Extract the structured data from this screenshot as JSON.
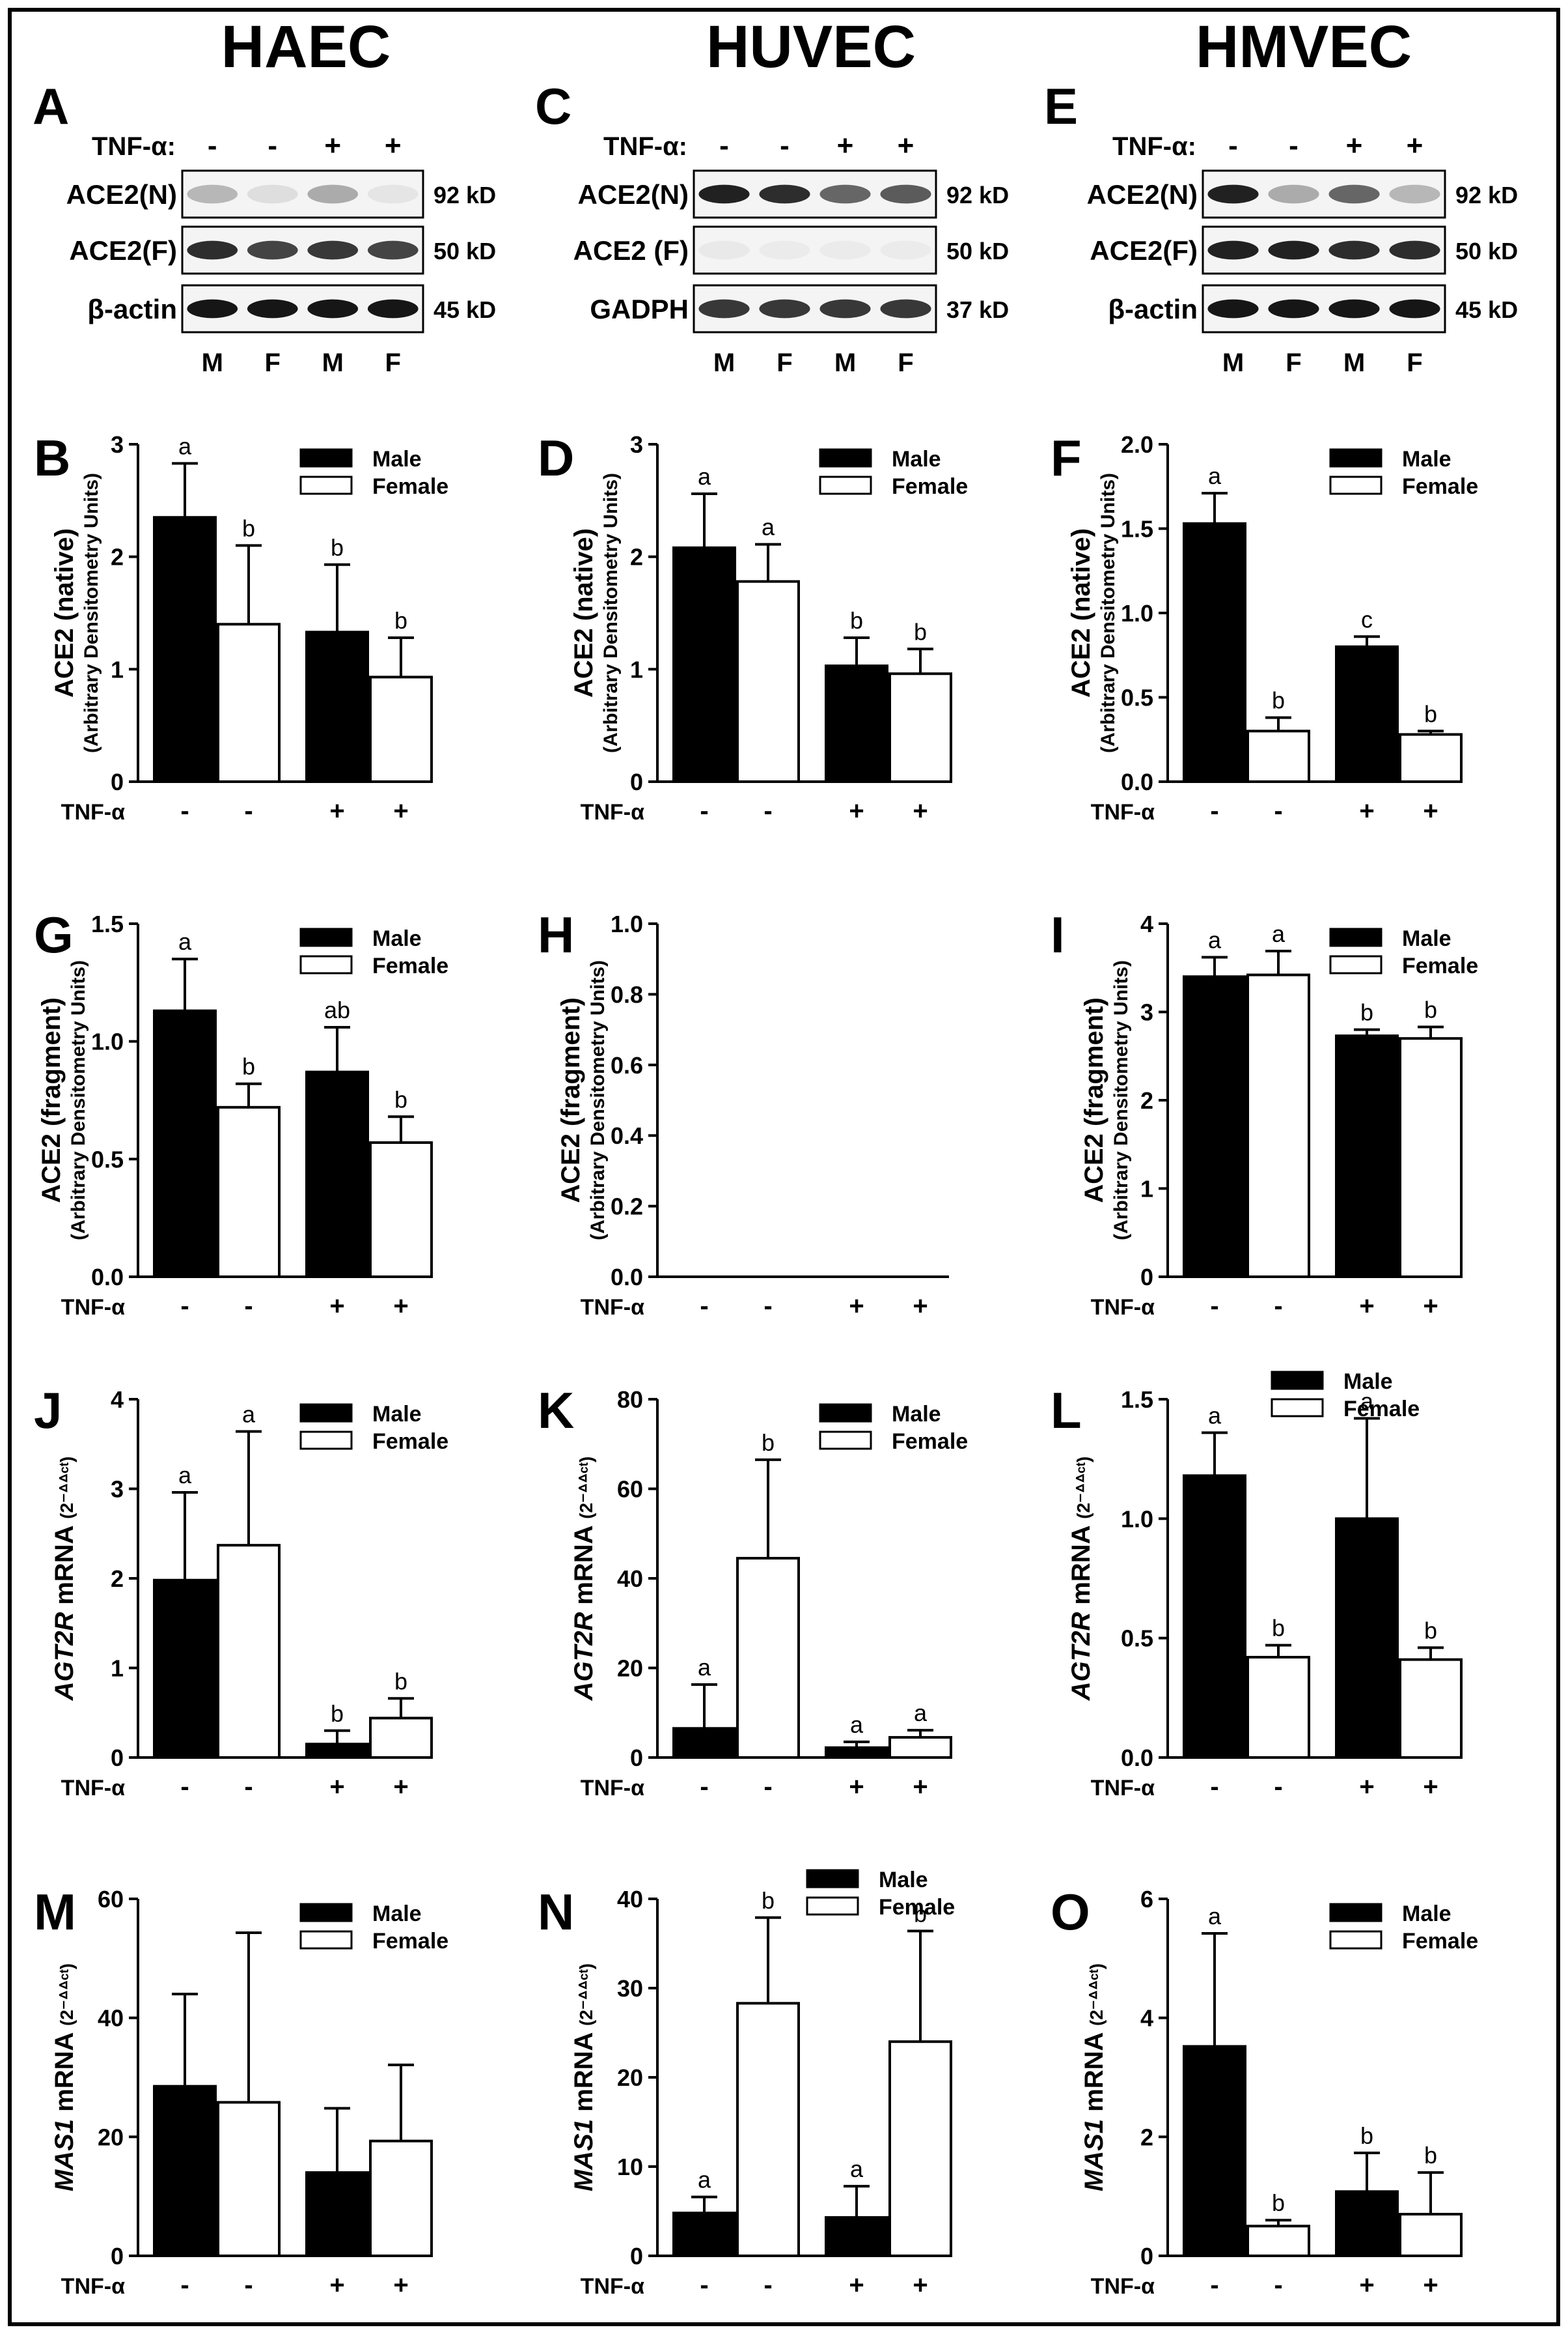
{
  "column_titles": [
    "HAEC",
    "HUVEC",
    "HMVEC"
  ],
  "blots": [
    {
      "letter": "A",
      "treatment_label": "TNF-α:",
      "treatment_signs": [
        "-",
        "-",
        "+",
        "+"
      ],
      "rows": [
        {
          "label": "ACE2(N)",
          "kd": "92 kD",
          "intensity": [
            0.25,
            0.08,
            0.3,
            0.05
          ],
          "blank": false
        },
        {
          "label": "ACE2(F)",
          "kd": "50 kD",
          "intensity": [
            0.85,
            0.75,
            0.8,
            0.75
          ],
          "blank": false
        },
        {
          "label": "β-actin",
          "kd": "45 kD",
          "intensity": [
            0.95,
            0.95,
            0.95,
            0.95
          ],
          "blank": false
        }
      ],
      "lane_labels": [
        "M",
        "F",
        "M",
        "F"
      ]
    },
    {
      "letter": "C",
      "treatment_label": "TNF-α:",
      "treatment_signs": [
        "-",
        "-",
        "+",
        "+"
      ],
      "rows": [
        {
          "label": "ACE2(N)",
          "kd": "92 kD",
          "intensity": [
            0.9,
            0.85,
            0.6,
            0.65
          ],
          "blank": false
        },
        {
          "label": "ACE2 (F)",
          "kd": "50 kD",
          "intensity": [
            0.03,
            0.02,
            0.02,
            0.02
          ],
          "blank": true
        },
        {
          "label": "GADPH",
          "kd": "37 kD",
          "intensity": [
            0.8,
            0.8,
            0.8,
            0.8
          ],
          "blank": false
        }
      ],
      "lane_labels": [
        "M",
        "F",
        "M",
        "F"
      ]
    },
    {
      "letter": "E",
      "treatment_label": "TNF-α:",
      "treatment_signs": [
        "-",
        "-",
        "+",
        "+"
      ],
      "rows": [
        {
          "label": "ACE2(N)",
          "kd": "92 kD",
          "intensity": [
            0.9,
            0.3,
            0.6,
            0.25
          ],
          "blank": false
        },
        {
          "label": "ACE2(F)",
          "kd": "50 kD",
          "intensity": [
            0.9,
            0.9,
            0.85,
            0.85
          ],
          "blank": false
        },
        {
          "label": "β-actin",
          "kd": "45 kD",
          "intensity": [
            0.95,
            0.95,
            0.95,
            0.95
          ],
          "blank": false
        }
      ],
      "lane_labels": [
        "M",
        "F",
        "M",
        "F"
      ]
    }
  ],
  "chart_data": [
    {
      "letter": "B",
      "type": "bar",
      "ylabel_main": "ACE2 (native)",
      "ylabel_sub": "(Arbitrary Densitometry Units)",
      "ymax": 3,
      "yticks": [
        "0",
        "1",
        "2",
        "3"
      ],
      "legend": [
        "Male",
        "Female"
      ],
      "legend_pos": "top-right",
      "xlabel": "TNF-α",
      "signs": [
        "-",
        "-",
        "+",
        "+"
      ],
      "values": [
        2.35,
        1.4,
        1.33,
        0.93
      ],
      "errors": [
        0.48,
        0.7,
        0.6,
        0.35
      ],
      "letters": [
        "a",
        "b",
        "b",
        "b"
      ]
    },
    {
      "letter": "D",
      "type": "bar",
      "ylabel_main": "ACE2 (native)",
      "ylabel_sub": "(Arbitrary Densitometry Units)",
      "ymax": 3,
      "yticks": [
        "0",
        "1",
        "2",
        "3"
      ],
      "legend": [
        "Male",
        "Female"
      ],
      "legend_pos": "top-right",
      "xlabel": "TNF-α",
      "signs": [
        "-",
        "-",
        "+",
        "+"
      ],
      "values": [
        2.08,
        1.78,
        1.03,
        0.96
      ],
      "errors": [
        0.48,
        0.33,
        0.25,
        0.22
      ],
      "letters": [
        "a",
        "a",
        "b",
        "b"
      ]
    },
    {
      "letter": "F",
      "type": "bar",
      "ylabel_main": "ACE2 (native)",
      "ylabel_sub": "(Arbitrary Densitometry Units)",
      "ymax": 2,
      "yticks": [
        "0.0",
        "0.5",
        "1.0",
        "1.5",
        "2.0"
      ],
      "legend": [
        "Male",
        "Female"
      ],
      "legend_pos": "top-right",
      "xlabel": "TNF-α",
      "signs": [
        "-",
        "-",
        "+",
        "+"
      ],
      "values": [
        1.53,
        0.3,
        0.8,
        0.28
      ],
      "errors": [
        0.18,
        0.08,
        0.06,
        0.02
      ],
      "letters": [
        "a",
        "b",
        "c",
        "b"
      ]
    },
    {
      "letter": "G",
      "type": "bar",
      "ylabel_main": "ACE2 (fragment)",
      "ylabel_sub": "(Arbitrary Densitometry Units)",
      "ymax": 1.5,
      "yticks": [
        "0.0",
        "0.5",
        "1.0",
        "1.5"
      ],
      "legend": [
        "Male",
        "Female"
      ],
      "legend_pos": "top-right",
      "xlabel": "TNF-α",
      "signs": [
        "-",
        "-",
        "+",
        "+"
      ],
      "values": [
        1.13,
        0.72,
        0.87,
        0.57
      ],
      "errors": [
        0.22,
        0.1,
        0.19,
        0.11
      ],
      "letters": [
        "a",
        "b",
        "ab",
        "b"
      ]
    },
    {
      "letter": "H",
      "type": "bar",
      "ylabel_main": "ACE2 (fragment)",
      "ylabel_sub": "(Arbitrary Densitometry Units)",
      "ymax": 1,
      "yticks": [
        "0.0",
        "0.2",
        "0.4",
        "0.6",
        "0.8",
        "1.0"
      ],
      "legend": [],
      "legend_pos": "none",
      "xlabel": "TNF-α",
      "signs": [
        "-",
        "-",
        "+",
        "+"
      ],
      "values": [
        0,
        0,
        0,
        0
      ],
      "errors": [
        0,
        0,
        0,
        0
      ],
      "letters": [
        "",
        "",
        "",
        ""
      ]
    },
    {
      "letter": "I",
      "type": "bar",
      "ylabel_main": "ACE2 (fragment)",
      "ylabel_sub": "(Arbitrary Densitometry Units)",
      "ymax": 4,
      "yticks": [
        "0",
        "1",
        "2",
        "3",
        "4"
      ],
      "legend": [
        "Male",
        "Female"
      ],
      "legend_pos": "top-right",
      "xlabel": "TNF-α",
      "signs": [
        "-",
        "-",
        "+",
        "+"
      ],
      "values": [
        3.4,
        3.42,
        2.73,
        2.7
      ],
      "errors": [
        0.22,
        0.27,
        0.07,
        0.13
      ],
      "letters": [
        "a",
        "a",
        "b",
        "b"
      ]
    },
    {
      "letter": "J",
      "type": "bar",
      "ylabel_html": "AGT2R",
      "ylabel_main": "mRNA",
      "ylabel_sub": "(2⁻ᐞᐞᶜᵗ)",
      "ymax": 4,
      "yticks": [
        "0",
        "1",
        "2",
        "3",
        "4"
      ],
      "legend": [
        "Male",
        "Female"
      ],
      "legend_pos": "top-right",
      "xlabel": "TNF-α",
      "signs": [
        "-",
        "-",
        "+",
        "+"
      ],
      "values": [
        1.98,
        2.37,
        0.15,
        0.44
      ],
      "errors": [
        0.98,
        1.27,
        0.15,
        0.22
      ],
      "letters": [
        "a",
        "a",
        "b",
        "b"
      ]
    },
    {
      "letter": "K",
      "type": "bar",
      "ylabel_html": "AGT2R",
      "ylabel_main": "mRNA",
      "ylabel_sub": "(2⁻ᐞᐞᶜᵗ)",
      "ymax": 80,
      "yticks": [
        "0",
        "20",
        "40",
        "60",
        "80"
      ],
      "legend": [
        "Male",
        "Female"
      ],
      "legend_pos": "top-right",
      "xlabel": "TNF-α",
      "signs": [
        "-",
        "-",
        "+",
        "+"
      ],
      "values": [
        6.5,
        44.5,
        2.2,
        4.5
      ],
      "errors": [
        9.8,
        22,
        1.3,
        1.6
      ],
      "letters": [
        "a",
        "b",
        "a",
        "a"
      ]
    },
    {
      "letter": "L",
      "type": "bar",
      "ylabel_html": "AGT2R",
      "ylabel_main": "mRNA",
      "ylabel_sub": "(2⁻ᐞᐞᶜᵗ)",
      "ymax": 1.5,
      "yticks": [
        "0.0",
        "0.5",
        "1.0",
        "1.5"
      ],
      "legend": [
        "Male",
        "Female"
      ],
      "legend_pos": "top-left",
      "xlabel": "TNF-α",
      "signs": [
        "-",
        "-",
        "+",
        "+"
      ],
      "values": [
        1.18,
        0.42,
        1.0,
        0.41
      ],
      "errors": [
        0.18,
        0.05,
        0.42,
        0.05
      ],
      "letters": [
        "a",
        "b",
        "a",
        "b"
      ]
    },
    {
      "letter": "M",
      "type": "bar",
      "ylabel_html": "MAS1",
      "ylabel_main": "mRNA",
      "ylabel_sub": "(2⁻ᐞᐞᶜᵗ)",
      "ymax": 60,
      "yticks": [
        "0",
        "20",
        "40",
        "60"
      ],
      "legend": [
        "Male",
        "Female"
      ],
      "legend_pos": "top-right",
      "xlabel": "TNF-α",
      "signs": [
        "-",
        "-",
        "+",
        "+"
      ],
      "values": [
        28.5,
        25.8,
        14,
        19.3
      ],
      "errors": [
        15.5,
        28.5,
        10.8,
        12.8
      ],
      "letters": [
        "",
        "",
        "",
        ""
      ]
    },
    {
      "letter": "N",
      "type": "bar",
      "ylabel_html": "MAS1",
      "ylabel_main": "mRNA",
      "ylabel_sub": "(2⁻ᐞᐞᶜᵗ)",
      "ymax": 40,
      "yticks": [
        "0",
        "10",
        "20",
        "30",
        "40"
      ],
      "legend": [
        "Male",
        "Female"
      ],
      "legend_pos": "top-center",
      "xlabel": "TNF-α",
      "signs": [
        "-",
        "-",
        "+",
        "+"
      ],
      "values": [
        4.8,
        28.3,
        4.3,
        24
      ],
      "errors": [
        1.8,
        9.6,
        3.5,
        12.4
      ],
      "letters": [
        "a",
        "b",
        "a",
        "b"
      ]
    },
    {
      "letter": "O",
      "type": "bar",
      "ylabel_html": "MAS1",
      "ylabel_main": "mRNA",
      "ylabel_sub": "(2⁻ᐞᐞᶜᵗ)",
      "ymax": 6,
      "yticks": [
        "0",
        "2",
        "4",
        "6"
      ],
      "legend": [
        "Male",
        "Female"
      ],
      "legend_pos": "top-right",
      "xlabel": "TNF-α",
      "signs": [
        "-",
        "-",
        "+",
        "+"
      ],
      "values": [
        3.52,
        0.5,
        1.08,
        0.7
      ],
      "errors": [
        1.9,
        0.1,
        0.65,
        0.7
      ],
      "letters": [
        "a",
        "b",
        "b",
        "b"
      ]
    }
  ]
}
